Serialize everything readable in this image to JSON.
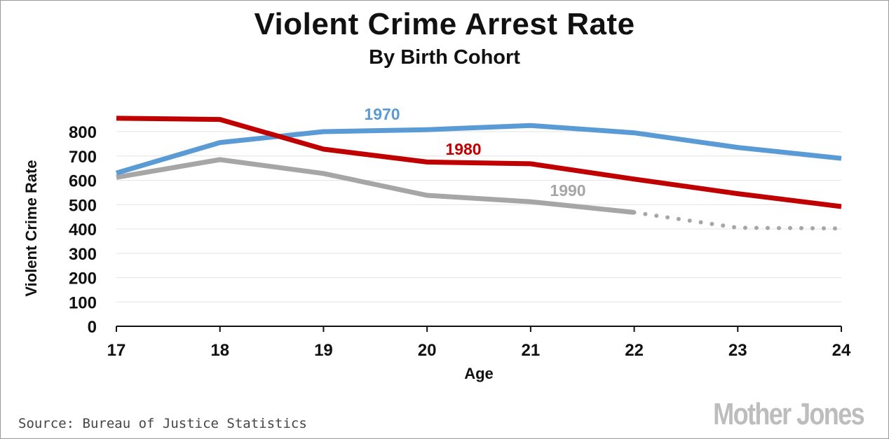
{
  "chart_data": {
    "type": "line",
    "title": "Violent Crime Arrest Rate",
    "subtitle": "By Birth Cohort",
    "xlabel": "Age",
    "ylabel": "Violent Crime Rate",
    "x": [
      17,
      18,
      19,
      20,
      21,
      22,
      23,
      24
    ],
    "xlim": [
      17,
      24
    ],
    "ylim": [
      0,
      800
    ],
    "yticks": [
      0,
      100,
      200,
      300,
      400,
      500,
      600,
      700,
      800
    ],
    "grid": true,
    "legend": "none",
    "series": [
      {
        "name": "1970",
        "color": "#5b9bd5",
        "x": [
          17,
          18,
          19,
          20,
          21,
          22,
          23,
          24
        ],
        "values": [
          630,
          755,
          800,
          808,
          825,
          795,
          735,
          690
        ]
      },
      {
        "name": "1980",
        "color": "#c00000",
        "x": [
          17,
          18,
          19,
          20,
          21,
          22,
          23,
          24
        ],
        "values": [
          855,
          850,
          728,
          675,
          668,
          605,
          545,
          492
        ]
      },
      {
        "name": "1990",
        "color": "#a6a6a6",
        "x": [
          17,
          18,
          19,
          20,
          21,
          22
        ],
        "values": [
          612,
          685,
          628,
          538,
          512,
          468
        ],
        "projection": {
          "style": "dotted",
          "x": [
            22,
            23,
            24
          ],
          "values": [
            468,
            405,
            402
          ]
        }
      }
    ]
  },
  "source": "Source: Bureau of Justice Statistics",
  "brand": "Mother Jones"
}
